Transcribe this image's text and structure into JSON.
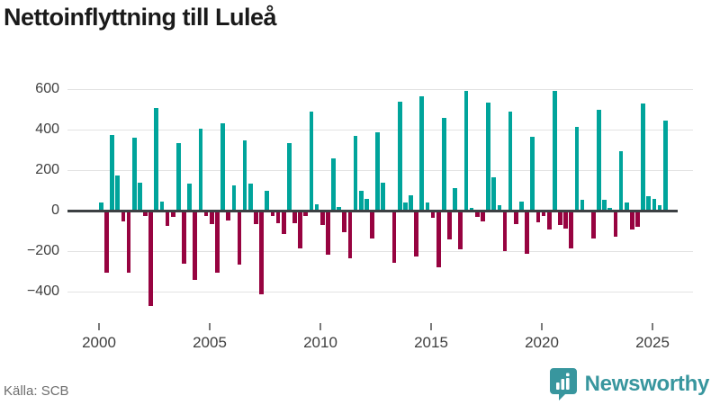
{
  "title": "Nettoinflyttning till Luleå",
  "source": "Källa: SCB",
  "brand": {
    "name": "Newsworthy",
    "icon": "newsworthy-pin-barchart-icon",
    "color": "#38969e"
  },
  "colors": {
    "positive": "#00a49b",
    "negative": "#970340",
    "axis": "#3c4043",
    "gridline": "#e2e2e2",
    "tick": "#7a7a7a",
    "label": "#3f3f3f"
  },
  "chart_data": {
    "type": "bar",
    "title": "Nettoinflyttning till Luleå",
    "frequency": "quarterly",
    "start": "2000Q1",
    "end": "2025Q3",
    "grid": "horizontal",
    "legend": "none",
    "ylim": [
      -500,
      650
    ],
    "y_tick_values": [
      600,
      400,
      200,
      0,
      -200,
      -400
    ],
    "y_tick_labels": [
      "600",
      "400",
      "200",
      "0",
      "−200",
      "−400"
    ],
    "x_tick_years": [
      2000,
      2005,
      2010,
      2015,
      2020,
      2025
    ],
    "x_tick_labels": [
      "2000",
      "2005",
      "2010",
      "2015",
      "2020",
      "2025"
    ],
    "series": [
      {
        "name": "Nettoinflyttning",
        "values": [
          40,
          -300,
          375,
          175,
          -45,
          -300,
          360,
          140,
          -20,
          -465,
          505,
          45,
          -70,
          -25,
          335,
          -255,
          135,
          -335,
          405,
          -20,
          -60,
          -300,
          430,
          -40,
          125,
          -260,
          345,
          135,
          -60,
          -405,
          100,
          -20,
          -55,
          -110,
          335,
          -55,
          -180,
          -20,
          490,
          30,
          -65,
          -210,
          260,
          20,
          -100,
          -230,
          370,
          100,
          60,
          -130,
          385,
          140,
          0,
          -250,
          540,
          40,
          75,
          -220,
          565,
          40,
          -30,
          -275,
          460,
          -135,
          110,
          -185,
          590,
          15,
          -25,
          -45,
          535,
          165,
          25,
          -195,
          490,
          -60,
          45,
          -205,
          365,
          -50,
          -20,
          -85,
          590,
          -65,
          -80,
          -180,
          415,
          55,
          0,
          -130,
          500,
          55,
          15,
          -120,
          295,
          40,
          -85,
          -75,
          530,
          70,
          60,
          25,
          445
        ]
      }
    ]
  }
}
